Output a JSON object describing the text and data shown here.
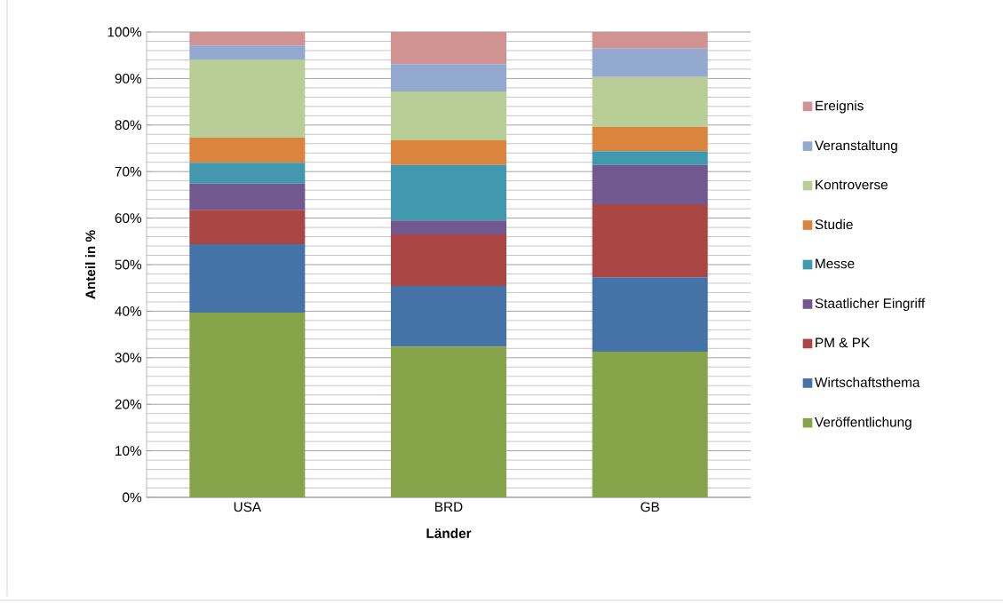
{
  "chart_data": {
    "type": "bar",
    "stacked": true,
    "xlabel": "Länder",
    "ylabel": "Anteil in %",
    "categories": [
      "USA",
      "BRD",
      "GB"
    ],
    "series": [
      {
        "name": "Veröffentlichung",
        "color": "#86a44a",
        "values": [
          39.7,
          32.4,
          31.3
        ]
      },
      {
        "name": "Wirtschaftsthema",
        "color": "#4572a7",
        "values": [
          14.7,
          13.0,
          16.0
        ]
      },
      {
        "name": "PM & PK",
        "color": "#aa4643",
        "values": [
          7.4,
          11.1,
          15.7
        ]
      },
      {
        "name": "Staatlicher Eingriff",
        "color": "#71588f",
        "values": [
          5.6,
          3.0,
          8.4
        ]
      },
      {
        "name": "Messe",
        "color": "#4198af",
        "values": [
          4.5,
          11.9,
          3.0
        ]
      },
      {
        "name": "Studie",
        "color": "#db843d",
        "values": [
          5.4,
          5.3,
          5.2
        ]
      },
      {
        "name": "Kontroverse",
        "color": "#b9cd96",
        "values": [
          16.8,
          10.5,
          10.7
        ]
      },
      {
        "name": "Veranstaltung",
        "color": "#93a9cf",
        "values": [
          3.0,
          5.9,
          6.1
        ]
      },
      {
        "name": "Ereignis",
        "color": "#d19392",
        "values": [
          2.9,
          6.9,
          3.6
        ]
      }
    ],
    "ylim": [
      0,
      100
    ],
    "yticks": [
      {
        "value": 0,
        "label": "0%"
      },
      {
        "value": 10,
        "label": "10%"
      },
      {
        "value": 20,
        "label": "20%"
      },
      {
        "value": 30,
        "label": "30%"
      },
      {
        "value": 40,
        "label": "40%"
      },
      {
        "value": 50,
        "label": "50%"
      },
      {
        "value": 60,
        "label": "60%"
      },
      {
        "value": 70,
        "label": "70%"
      },
      {
        "value": 80,
        "label": "80%"
      },
      {
        "value": 90,
        "label": "90%"
      },
      {
        "value": 100,
        "label": "100%"
      }
    ],
    "grid": "y",
    "legend": "right"
  }
}
